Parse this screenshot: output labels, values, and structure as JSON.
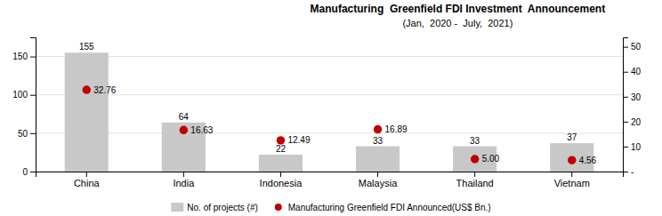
{
  "chart_data": {
    "type": "bar",
    "title": "Manufacturing  Greenfield FDI Investment  Announcement",
    "subtitle": "(Jan,  2020 -  July,  2021)",
    "categories": [
      "China",
      "India",
      "Indonesia",
      "Malaysia",
      "Thailand",
      "Vietnam"
    ],
    "series": [
      {
        "name": "No. of projects (#)",
        "type": "bar",
        "color": "#c8c8c8",
        "values": [
          155,
          64,
          22,
          33,
          33,
          37
        ]
      },
      {
        "name": "Manufacturing Greenfield FDI Announced(US$ Bn.)",
        "type": "scatter",
        "marker": "circle",
        "color": "#c00000",
        "axis": "y2",
        "values": [
          32.76,
          16.63,
          12.49,
          16.89,
          5.0,
          4.56
        ],
        "value_labels": [
          "32.76",
          "16.63",
          "12.49",
          "16.89",
          "5.00",
          "4.56"
        ]
      }
    ],
    "ylim": [
      0,
      175
    ],
    "yticks": [
      0,
      50,
      100,
      150
    ],
    "y2lim": [
      0,
      53.8
    ],
    "y2ticks": [
      {
        "value": 0,
        "label": "-"
      },
      10,
      20,
      30,
      40,
      50
    ],
    "grid": true,
    "data_labels": true,
    "legend": "bottom"
  }
}
